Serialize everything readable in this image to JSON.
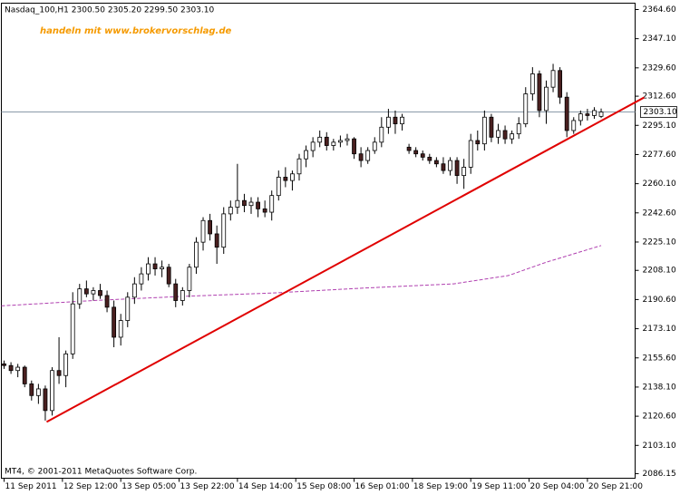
{
  "chart_data": {
    "type": "candlestick",
    "title": "Nasdaq_100,H1  2300.50 2305.20 2299.50 2303.10",
    "annotation": "handeln mit www.brokervorschlag.de",
    "footer": "MT4, © 2001-2011 MetaQuotes Software Corp.",
    "x": [
      0,
      2,
      4,
      6,
      8,
      10,
      12,
      14,
      16,
      18,
      20,
      22,
      24,
      26,
      28,
      30,
      32,
      34,
      36,
      38,
      40,
      42,
      44,
      46,
      48,
      50,
      52,
      54,
      56,
      58,
      60,
      62,
      64,
      66,
      68,
      70,
      72,
      74,
      76,
      78,
      80,
      82,
      84,
      86,
      88,
      90,
      92,
      94,
      96,
      98,
      100,
      102,
      104,
      106,
      108,
      110,
      112,
      114,
      116,
      118,
      120,
      122,
      124,
      126,
      128,
      130,
      132,
      134,
      136,
      138,
      140,
      142,
      144,
      146,
      148,
      150,
      152,
      154,
      156,
      158,
      160,
      162,
      164,
      166,
      168,
      170,
      172,
      174
    ],
    "open": [
      2152,
      2151,
      2148,
      2150,
      2140,
      2133,
      2137,
      2124,
      2148,
      2145,
      2158,
      2188,
      2197,
      2194,
      2196,
      2193,
      2186,
      2168,
      2178,
      2192,
      2200,
      2206,
      2212,
      2209,
      2210,
      2200,
      2190,
      2196,
      2210,
      2225,
      2238,
      2230,
      2222,
      2242,
      2246,
      2250,
      2247,
      2249,
      2245,
      2243,
      2253,
      2264,
      2262,
      2266,
      2275,
      2280,
      2285,
      2288,
      2283,
      2285,
      2286,
      2287,
      2278,
      2274,
      2280,
      2285,
      2294,
      2300,
      2296,
      2282,
      2280,
      2278,
      2276,
      2274,
      2272,
      2268,
      2274,
      2265,
      2270,
      2286,
      2284,
      2300,
      2288,
      2292,
      2287,
      2290,
      2296,
      2314,
      2326,
      2304,
      2318,
      2328,
      2312,
      2292,
      2298,
      2302,
      2301,
      2300.5
    ],
    "high": [
      2154,
      2153,
      2152,
      2151,
      2142,
      2140,
      2139,
      2150,
      2168,
      2160,
      2195,
      2200,
      2202,
      2198,
      2200,
      2196,
      2190,
      2182,
      2195,
      2204,
      2210,
      2216,
      2216,
      2214,
      2212,
      2203,
      2198,
      2212,
      2228,
      2240,
      2242,
      2235,
      2246,
      2250,
      2272,
      2254,
      2252,
      2252,
      2250,
      2256,
      2268,
      2270,
      2268,
      2278,
      2283,
      2288,
      2292,
      2291,
      2287,
      2289,
      2290,
      2288,
      2282,
      2282,
      2288,
      2300,
      2305,
      2304,
      2302,
      2284,
      2282,
      2280,
      2278,
      2276,
      2276,
      2276,
      2276,
      2275,
      2290,
      2292,
      2304,
      2302,
      2296,
      2295,
      2292,
      2300,
      2318,
      2330,
      2328,
      2322,
      2332,
      2330,
      2315,
      2300,
      2304,
      2305,
      2306,
      2305.2
    ],
    "low": [
      2149,
      2146,
      2144,
      2138,
      2130,
      2128,
      2118,
      2121,
      2140,
      2138,
      2155,
      2185,
      2192,
      2190,
      2191,
      2183,
      2162,
      2163,
      2174,
      2188,
      2196,
      2202,
      2205,
      2204,
      2198,
      2186,
      2187,
      2192,
      2206,
      2220,
      2226,
      2212,
      2218,
      2238,
      2242,
      2243,
      2242,
      2240,
      2240,
      2238,
      2250,
      2258,
      2256,
      2262,
      2270,
      2276,
      2282,
      2280,
      2280,
      2282,
      2283,
      2275,
      2270,
      2272,
      2278,
      2282,
      2290,
      2290,
      2292,
      2278,
      2276,
      2274,
      2272,
      2270,
      2266,
      2265,
      2260,
      2257,
      2266,
      2280,
      2280,
      2285,
      2284,
      2284,
      2284,
      2287,
      2294,
      2310,
      2300,
      2296,
      2315,
      2308,
      2288,
      2290,
      2295,
      2298,
      2299,
      2299.5
    ],
    "close": [
      2151,
      2148,
      2150,
      2140,
      2133,
      2137,
      2124,
      2148,
      2145,
      2158,
      2188,
      2197,
      2194,
      2196,
      2193,
      2186,
      2168,
      2178,
      2192,
      2200,
      2206,
      2212,
      2209,
      2210,
      2200,
      2190,
      2196,
      2210,
      2225,
      2238,
      2230,
      2222,
      2242,
      2246,
      2250,
      2247,
      2249,
      2245,
      2243,
      2253,
      2264,
      2262,
      2266,
      2275,
      2280,
      2285,
      2288,
      2283,
      2285,
      2286,
      2287,
      2278,
      2274,
      2280,
      2285,
      2294,
      2300,
      2296,
      2300,
      2280,
      2278,
      2276,
      2274,
      2272,
      2268,
      2274,
      2265,
      2270,
      2286,
      2284,
      2300,
      2288,
      2292,
      2287,
      2290,
      2296,
      2314,
      2326,
      2304,
      2318,
      2328,
      2312,
      2292,
      2298,
      2302,
      2301,
      2304,
      2303.1
    ],
    "bull_color": "#ffffff",
    "bear_color": "#4a2020",
    "wick_color": "#000000",
    "moving_average": {
      "color": "#b040b0",
      "x": [
        -0.8,
        26,
        52,
        78,
        105,
        131,
        147,
        158,
        174
      ],
      "values": [
        2186.8,
        2190,
        2192.5,
        2194.5,
        2197.5,
        2200,
        2205,
        2213,
        2223
      ]
    },
    "trendline": {
      "color": "#e00000",
      "x": [
        12.4,
        186.5
      ],
      "values": [
        2117.2,
        2311.8
      ]
    },
    "current_price": {
      "value": 2303.1,
      "label": "2303.10"
    },
    "xlim": [
      -0.8,
      183.9
    ],
    "ylim": [
      2083.4,
      2368.4
    ],
    "xticks": [
      {
        "value": 0,
        "label": "11 Sep 2011"
      },
      {
        "value": 17,
        "label": "12 Sep 12:00"
      },
      {
        "value": 34,
        "label": "13 Sep 05:00"
      },
      {
        "value": 51,
        "label": "13 Sep 22:00"
      },
      {
        "value": 68,
        "label": "14 Sep 14:00"
      },
      {
        "value": 85,
        "label": "15 Sep 08:00"
      },
      {
        "value": 102,
        "label": "16 Sep 01:00"
      },
      {
        "value": 119,
        "label": "18 Sep 19:00"
      },
      {
        "value": 136,
        "label": "19 Sep 11:00"
      },
      {
        "value": 153,
        "label": "20 Sep 04:00"
      },
      {
        "value": 170,
        "label": "20 Sep 21:00"
      }
    ],
    "yticks": [
      {
        "value": 2364.6,
        "label": "2364.60"
      },
      {
        "value": 2347.1,
        "label": "2347.10"
      },
      {
        "value": 2329.6,
        "label": "2329.60"
      },
      {
        "value": 2312.6,
        "label": "2312.60"
      },
      {
        "value": 2295.1,
        "label": "2295.10"
      },
      {
        "value": 2277.6,
        "label": "2277.60"
      },
      {
        "value": 2260.1,
        "label": "2260.10"
      },
      {
        "value": 2242.6,
        "label": "2242.60"
      },
      {
        "value": 2225.1,
        "label": "2225.10"
      },
      {
        "value": 2208.1,
        "label": "2208.10"
      },
      {
        "value": 2190.6,
        "label": "2190.60"
      },
      {
        "value": 2173.1,
        "label": "2173.10"
      },
      {
        "value": 2155.6,
        "label": "2155.60"
      },
      {
        "value": 2138.1,
        "label": "2138.10"
      },
      {
        "value": 2120.6,
        "label": "2120.60"
      },
      {
        "value": 2103.1,
        "label": "2103.10"
      },
      {
        "value": 2086.15,
        "label": "2086.15"
      }
    ]
  }
}
